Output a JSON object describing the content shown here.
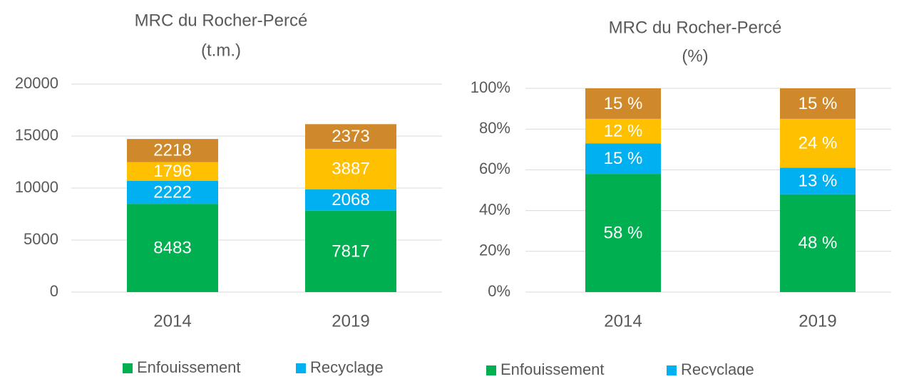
{
  "chart_data": [
    {
      "type": "stacked_bar",
      "title": [
        "MRC du Rocher-Percé",
        "(t.m.)"
      ],
      "categories": [
        "2014",
        "2019"
      ],
      "series": [
        {
          "name": "Enfouissement",
          "color": "#00b050",
          "values": [
            8483,
            7817
          ]
        },
        {
          "name": "Recyclage",
          "color": "#00b0f0",
          "values": [
            2222,
            2068
          ]
        },
        {
          "color": "#ffc000",
          "values": [
            1796,
            3887
          ]
        },
        {
          "color": "#d0892a",
          "values": [
            2218,
            2373
          ]
        }
      ],
      "ylim": [
        0,
        20000
      ],
      "yticks": [
        0,
        5000,
        10000,
        15000,
        20000
      ],
      "grid": true
    },
    {
      "type": "stacked_bar",
      "title": [
        "MRC du Rocher-Percé",
        "(%)"
      ],
      "categories": [
        "2014",
        "2019"
      ],
      "series": [
        {
          "name": "Enfouissement",
          "color": "#00b050",
          "values": [
            58,
            48
          ],
          "value_labels": [
            "58 %",
            "48 %"
          ]
        },
        {
          "name": "Recyclage",
          "color": "#00b0f0",
          "values": [
            15,
            13
          ],
          "value_labels": [
            "15 %",
            "13 %"
          ]
        },
        {
          "color": "#ffc000",
          "values": [
            12,
            24
          ],
          "value_labels": [
            "12 %",
            "24 %"
          ]
        },
        {
          "color": "#d0892a",
          "values": [
            15,
            15
          ],
          "value_labels": [
            "15 %",
            "15 %"
          ]
        }
      ],
      "ylim": [
        0,
        100
      ],
      "yticks": [
        {
          "value": 0,
          "label": "0%"
        },
        {
          "value": 20,
          "label": "20%"
        },
        {
          "value": 40,
          "label": "40%"
        },
        {
          "value": 60,
          "label": "60%"
        },
        {
          "value": 80,
          "label": "80%"
        },
        {
          "value": 100,
          "label": "100%"
        }
      ],
      "grid": true
    }
  ]
}
